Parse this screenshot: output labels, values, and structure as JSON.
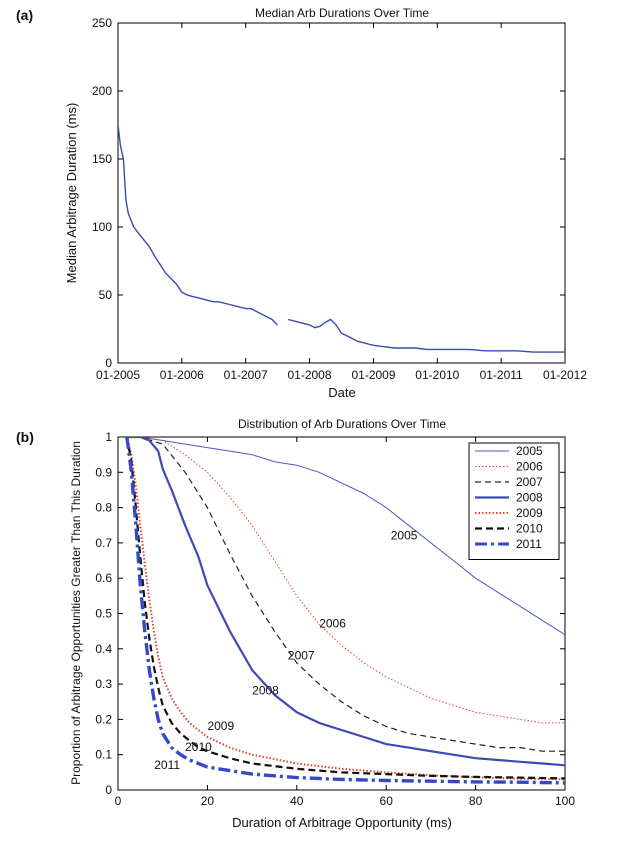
{
  "chart_data": [
    {
      "panel": "(a)",
      "type": "line",
      "title": "Median Arb Durations Over Time",
      "xlabel": "Date",
      "ylabel": "Median Arbitrage Duration (ms)",
      "xlim": [
        "2005-01-01",
        "2012-01-01"
      ],
      "ylim": [
        0,
        250
      ],
      "xticks": [
        "01-2005",
        "01-2006",
        "01-2007",
        "01-2008",
        "01-2009",
        "01-2010",
        "01-2011",
        "01-2012"
      ],
      "yticks": [
        0,
        50,
        100,
        150,
        200,
        250
      ],
      "grid": false,
      "color": "#3a4bb0",
      "series": [
        {
          "segments": [
            {
              "x": [
                "2005-01-01",
                "2005-01-15",
                "2005-02-01",
                "2005-02-15",
                "2005-03-01",
                "2005-04-01",
                "2005-05-01",
                "2005-06-01",
                "2005-07-01",
                "2005-08-01",
                "2005-09-01",
                "2005-10-01",
                "2005-11-01",
                "2005-12-01",
                "2006-01-01",
                "2006-02-01",
                "2006-03-01",
                "2006-04-01",
                "2006-05-01",
                "2006-06-01",
                "2006-07-01",
                "2006-08-01",
                "2006-09-01",
                "2006-10-01",
                "2006-11-01",
                "2006-12-01",
                "2007-01-01",
                "2007-02-01",
                "2007-03-01",
                "2007-04-01",
                "2007-05-01",
                "2007-06-01",
                "2007-07-01"
              ],
              "y": [
                175,
                160,
                150,
                120,
                110,
                100,
                95,
                90,
                85,
                78,
                72,
                66,
                62,
                58,
                52,
                50,
                49,
                48,
                47,
                46,
                45,
                45,
                44,
                43,
                42,
                41,
                40,
                40,
                38,
                36,
                34,
                32,
                28
              ]
            },
            {
              "x": [
                "2007-09-01",
                "2007-10-01",
                "2007-11-01",
                "2007-12-01",
                "2008-01-01",
                "2008-02-01",
                "2008-03-01",
                "2008-04-01",
                "2008-05-01",
                "2008-06-01",
                "2008-07-01",
                "2008-08-01",
                "2008-09-01",
                "2008-10-01",
                "2008-11-01",
                "2008-12-01",
                "2009-01-01",
                "2009-03-01",
                "2009-05-01",
                "2009-07-01",
                "2009-09-01",
                "2009-11-01",
                "2010-01-01",
                "2010-04-01",
                "2010-07-01",
                "2010-10-01",
                "2011-01-01",
                "2011-04-01",
                "2011-07-01",
                "2011-10-01",
                "2012-01-01"
              ],
              "y": [
                32,
                31,
                30,
                29,
                28,
                26,
                27,
                30,
                32,
                28,
                22,
                20,
                18,
                16,
                15,
                14,
                13,
                12,
                11,
                11,
                11,
                10,
                10,
                10,
                10,
                9,
                9,
                9,
                8,
                8,
                8
              ]
            }
          ]
        }
      ]
    },
    {
      "panel": "(b)",
      "type": "line",
      "title": "Distribution of Arb Durations Over Time",
      "xlabel": "Duration of Arbitrage Opportunity (ms)",
      "ylabel": "Proportion of Arbitrage Opportunities Greater Than This Duration",
      "xlim": [
        0,
        100
      ],
      "ylim": [
        0,
        1
      ],
      "xticks": [
        0,
        20,
        40,
        60,
        80,
        100
      ],
      "yticks": [
        0,
        0.1,
        0.2,
        0.3,
        0.4,
        0.5,
        0.6,
        0.7,
        0.8,
        0.9,
        1
      ],
      "grid": false,
      "legend_position": "top-right",
      "series": [
        {
          "name": "2005",
          "label": "2005",
          "color": "#4a58c0",
          "style": "solid-thin",
          "x": [
            2,
            5,
            10,
            15,
            20,
            25,
            30,
            35,
            40,
            45,
            50,
            55,
            60,
            65,
            70,
            75,
            80,
            85,
            90,
            95,
            100
          ],
          "y": [
            1.0,
            1.0,
            0.99,
            0.98,
            0.97,
            0.96,
            0.95,
            0.93,
            0.92,
            0.9,
            0.87,
            0.84,
            0.8,
            0.75,
            0.7,
            0.65,
            0.6,
            0.56,
            0.52,
            0.48,
            0.44
          ]
        },
        {
          "name": "2006",
          "label": "2006",
          "color": "#e0422a",
          "style": "dotted",
          "x": [
            2,
            5,
            10,
            15,
            20,
            25,
            30,
            35,
            40,
            45,
            50,
            55,
            60,
            65,
            70,
            75,
            80,
            85,
            90,
            95,
            100
          ],
          "y": [
            1.0,
            1.0,
            0.99,
            0.95,
            0.9,
            0.83,
            0.75,
            0.65,
            0.55,
            0.47,
            0.41,
            0.36,
            0.32,
            0.29,
            0.26,
            0.24,
            0.22,
            0.21,
            0.2,
            0.19,
            0.19
          ]
        },
        {
          "name": "2007",
          "label": "2007",
          "color": "#222222",
          "style": "dashed",
          "x": [
            2,
            5,
            10,
            15,
            20,
            25,
            30,
            35,
            40,
            45,
            50,
            55,
            60,
            65,
            70,
            75,
            80,
            85,
            90,
            95,
            100
          ],
          "y": [
            1.0,
            1.0,
            0.98,
            0.9,
            0.8,
            0.67,
            0.55,
            0.45,
            0.36,
            0.3,
            0.25,
            0.21,
            0.18,
            0.16,
            0.15,
            0.14,
            0.13,
            0.12,
            0.12,
            0.11,
            0.11
          ]
        },
        {
          "name": "2008",
          "label": "2008",
          "color": "#3a4bb8",
          "style": "solid-thick",
          "x": [
            2,
            5,
            7,
            9,
            10,
            12,
            15,
            18,
            20,
            25,
            30,
            35,
            40,
            45,
            50,
            55,
            60,
            65,
            70,
            75,
            80,
            85,
            90,
            95,
            100
          ],
          "y": [
            1.0,
            1.0,
            0.99,
            0.96,
            0.91,
            0.85,
            0.75,
            0.66,
            0.58,
            0.45,
            0.34,
            0.27,
            0.22,
            0.19,
            0.17,
            0.15,
            0.13,
            0.12,
            0.11,
            0.1,
            0.09,
            0.085,
            0.08,
            0.075,
            0.07
          ]
        },
        {
          "name": "2009",
          "label": "2009",
          "color": "#e0422a",
          "style": "dotted-thick",
          "x": [
            2,
            3,
            4,
            5,
            6,
            7,
            8,
            9,
            10,
            12,
            14,
            16,
            18,
            20,
            25,
            30,
            40,
            50,
            60,
            70,
            80,
            90,
            100
          ],
          "y": [
            1.0,
            0.95,
            0.86,
            0.75,
            0.64,
            0.54,
            0.45,
            0.38,
            0.32,
            0.26,
            0.22,
            0.19,
            0.17,
            0.15,
            0.12,
            0.1,
            0.075,
            0.06,
            0.05,
            0.042,
            0.036,
            0.032,
            0.03
          ]
        },
        {
          "name": "2010",
          "label": "2010",
          "color": "#111111",
          "style": "dashed-thick",
          "x": [
            2,
            3,
            4,
            5,
            6,
            7,
            8,
            9,
            10,
            12,
            14,
            16,
            18,
            20,
            25,
            30,
            40,
            50,
            60,
            70,
            80,
            90,
            100
          ],
          "y": [
            1.0,
            0.93,
            0.8,
            0.66,
            0.53,
            0.43,
            0.35,
            0.29,
            0.24,
            0.19,
            0.16,
            0.14,
            0.12,
            0.11,
            0.09,
            0.075,
            0.06,
            0.05,
            0.045,
            0.04,
            0.037,
            0.035,
            0.033
          ]
        },
        {
          "name": "2011",
          "label": "2011",
          "color": "#3548c8",
          "style": "dashdot-thick",
          "x": [
            2,
            3,
            4,
            5,
            6,
            7,
            8,
            9,
            10,
            12,
            14,
            16,
            18,
            20,
            25,
            30,
            40,
            50,
            60,
            70,
            80,
            90,
            100
          ],
          "y": [
            1.0,
            0.9,
            0.75,
            0.58,
            0.45,
            0.34,
            0.26,
            0.2,
            0.16,
            0.12,
            0.1,
            0.085,
            0.075,
            0.065,
            0.055,
            0.045,
            0.035,
            0.03,
            0.027,
            0.025,
            0.023,
            0.022,
            0.02
          ]
        }
      ],
      "annotations": [
        {
          "text": "2005",
          "x": 64,
          "y": 0.71
        },
        {
          "text": "2006",
          "x": 48,
          "y": 0.46
        },
        {
          "text": "2007",
          "x": 41,
          "y": 0.37
        },
        {
          "text": "2008",
          "x": 33,
          "y": 0.27
        },
        {
          "text": "2009",
          "x": 23,
          "y": 0.17
        },
        {
          "text": "2010",
          "x": 18,
          "y": 0.11
        },
        {
          "text": "2011",
          "x": 11,
          "y": 0.06
        }
      ]
    }
  ]
}
